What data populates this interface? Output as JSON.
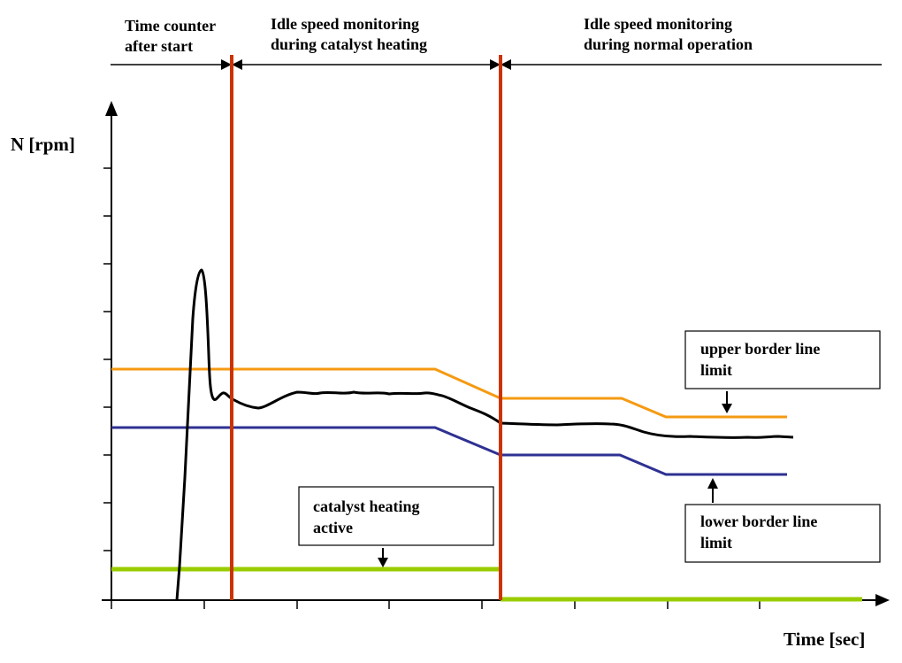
{
  "phases": [
    {
      "line1": "Time counter",
      "line2": "after start"
    },
    {
      "line1": "Idle speed monitoring",
      "line2": "during catalyst heating"
    },
    {
      "line1": "Idle speed monitoring",
      "line2": "during normal operation"
    }
  ],
  "axes": {
    "y_label": "N [rpm]",
    "x_label": "Time [sec]"
  },
  "callouts": {
    "upper": {
      "line1": "upper border line",
      "line2": "limit"
    },
    "lower": {
      "line1": "lower border line",
      "line2": "limit"
    },
    "catalyst": {
      "line1": "catalyst heating",
      "line2": "active"
    }
  },
  "colors": {
    "speed": "#000000",
    "upper_limit": "#f59a12",
    "lower_limit": "#2e3192",
    "catalyst": "#99cc00",
    "phase_boundary": "#cc3300"
  }
}
